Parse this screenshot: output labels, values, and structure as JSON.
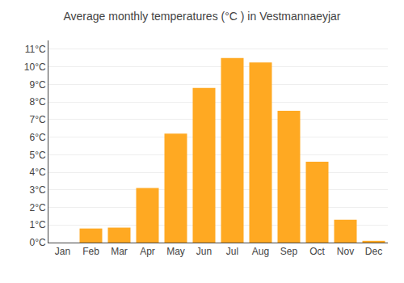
{
  "chart_data": {
    "type": "bar",
    "title": "Average monthly temperatures (°C ) in Vestmannaeyjar",
    "categories": [
      "Jan",
      "Feb",
      "Mar",
      "Apr",
      "May",
      "Jun",
      "Jul",
      "Aug",
      "Sep",
      "Oct",
      "Nov",
      "Dec"
    ],
    "values": [
      0.0,
      0.8,
      0.85,
      3.1,
      6.2,
      8.8,
      10.5,
      10.25,
      7.5,
      4.6,
      1.3,
      0.1
    ],
    "color": "#FFA922",
    "ylim": [
      0,
      11.5
    ],
    "yticks": [
      {
        "value": 0,
        "label": "0°C"
      },
      {
        "value": 1,
        "label": "1°C"
      },
      {
        "value": 2,
        "label": "2°C"
      },
      {
        "value": 3,
        "label": "3°C"
      },
      {
        "value": 4,
        "label": "4°C"
      },
      {
        "value": 5,
        "label": "5°C"
      },
      {
        "value": 6,
        "label": "6°C"
      },
      {
        "value": 7,
        "label": "7°C"
      },
      {
        "value": 8,
        "label": "8°C"
      },
      {
        "value": 9,
        "label": "9°C"
      },
      {
        "value": 10,
        "label": "10°C"
      },
      {
        "value": 11,
        "label": "11°C"
      }
    ],
    "grid": true
  }
}
